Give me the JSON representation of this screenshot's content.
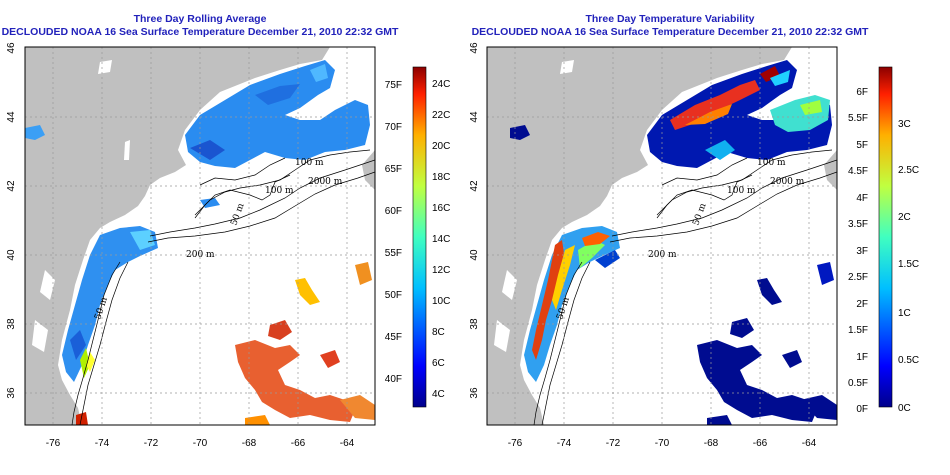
{
  "colors": {
    "title": "#2222bb",
    "land": "#c0c0c0",
    "ocean_nodata": "#ffffff",
    "contour": "#000000",
    "grid": "#999999"
  },
  "map": {
    "x_ticks": [
      "-76",
      "-74",
      "-72",
      "-70",
      "-68",
      "-66",
      "-64"
    ],
    "y_ticks": [
      "46",
      "44",
      "42",
      "40",
      "38",
      "36"
    ],
    "contour_labels": [
      "100 m",
      "2000 m",
      "100 m",
      "50 m",
      "200 m",
      "50 m"
    ]
  },
  "panels": [
    {
      "title_line1": "Three Day Rolling Average",
      "title_line2": "DECLOUDED NOAA 16 Sea Surface Temperature December 21, 2010 22:32 GMT",
      "colorbar_f": [
        "75F",
        "70F",
        "65F",
        "60F",
        "55F",
        "50F",
        "45F",
        "40F"
      ],
      "colorbar_c": [
        "24C",
        "22C",
        "20C",
        "18C",
        "16C",
        "14C",
        "12C",
        "10C",
        "8C",
        "6C",
        "4C"
      ]
    },
    {
      "title_line1": "Three Day Temperature Variability",
      "title_line2": "DECLOUDED NOAA 16 Sea Surface Temperature December 21, 2010 22:32 GMT",
      "colorbar_f": [
        "6F",
        "5.5F",
        "5F",
        "4.5F",
        "4F",
        "3.5F",
        "3F",
        "2.5F",
        "2F",
        "1.5F",
        "1F",
        "0.5F",
        "0F"
      ],
      "colorbar_c": [
        "3C",
        "2.5C",
        "2C",
        "1.5C",
        "1C",
        "0.5C",
        "0C"
      ]
    }
  ]
}
